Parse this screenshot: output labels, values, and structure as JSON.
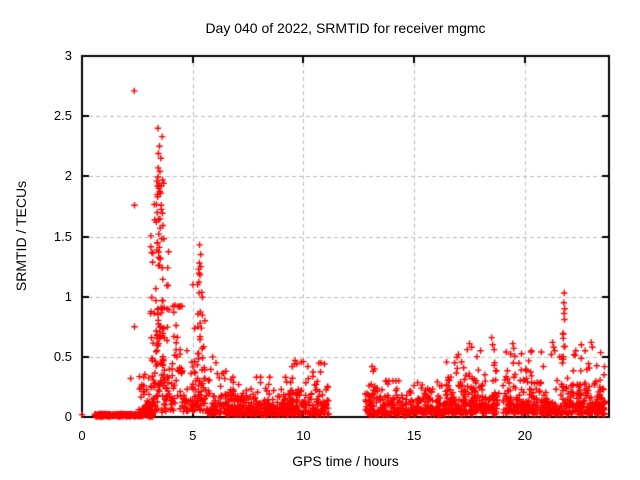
{
  "chart_data": {
    "type": "scatter",
    "title": "Day 040 of 2022, SRMTID for receiver mgmc",
    "xlabel": "GPS time / hours",
    "ylabel": "SRMTID / TECUs",
    "xlim": [
      0,
      23.8
    ],
    "ylim": [
      0,
      3
    ],
    "xticks": [
      0,
      5,
      10,
      15,
      20
    ],
    "yticks": [
      0,
      0.5,
      1,
      1.5,
      2,
      2.5,
      3
    ],
    "grid": "dashed",
    "legend": "none",
    "marker": "plus",
    "marker_color": "#ff0000",
    "grid_color": "#bdbdbd",
    "border_color": "#000000",
    "background": "#ffffff",
    "seed": 42,
    "notes": "dense noisy scatter; flat near-zero bar 0.6-2.7h; big spike cluster 3.1-4.9h (max 2.71 at 2.36h, column to 2.40 at 3.4-3.6h); secondary spike 5.3h to 1.43; low band 5.6-11.1h; data gap 11.1-12.8h; low band 12.8-16.4h; taller clusters 16.4-21h up to ~0.66; narrow spike 21.8h to 1.03; end cluster to 23.6h up to ~0.62",
    "points": [
      [
        0.0,
        0.02
      ],
      [
        2.36,
        2.71
      ],
      [
        2.37,
        1.76
      ],
      [
        2.37,
        0.75
      ],
      [
        2.2,
        0.32
      ],
      [
        3.43,
        2.4
      ],
      [
        3.62,
        2.33
      ],
      [
        3.5,
        2.25
      ],
      [
        3.45,
        2.19
      ],
      [
        3.56,
        2.15
      ],
      [
        3.44,
        2.07
      ],
      [
        3.52,
        2.04
      ],
      [
        3.38,
        1.96
      ],
      [
        3.47,
        1.9
      ],
      [
        3.55,
        1.86
      ],
      [
        3.42,
        1.83
      ],
      [
        3.58,
        1.76
      ],
      [
        3.4,
        1.7
      ],
      [
        3.36,
        1.62
      ],
      [
        3.53,
        1.57
      ],
      [
        3.47,
        1.52
      ],
      [
        3.6,
        1.48
      ],
      [
        4.2,
        0.93
      ],
      [
        4.15,
        0.87
      ],
      [
        4.25,
        0.76
      ],
      [
        5.31,
        1.43
      ],
      [
        5.36,
        1.35
      ],
      [
        5.3,
        1.28
      ],
      [
        5.33,
        1.18
      ],
      [
        5.28,
        1.12
      ],
      [
        5.9,
        0.5
      ],
      [
        6.05,
        0.45
      ],
      [
        9.62,
        0.47
      ],
      [
        9.7,
        0.44
      ],
      [
        10.2,
        0.42
      ],
      [
        10.95,
        0.44
      ],
      [
        13.1,
        0.42
      ],
      [
        13.15,
        0.38
      ],
      [
        17.0,
        0.52
      ],
      [
        17.4,
        0.56
      ],
      [
        17.5,
        0.61
      ],
      [
        17.6,
        0.58
      ],
      [
        18.0,
        0.55
      ],
      [
        18.5,
        0.66
      ],
      [
        18.55,
        0.6
      ],
      [
        19.45,
        0.61
      ],
      [
        19.5,
        0.57
      ],
      [
        20.3,
        0.55
      ],
      [
        21.25,
        0.62
      ],
      [
        21.3,
        0.58
      ],
      [
        21.35,
        0.55
      ],
      [
        21.2,
        0.52
      ],
      [
        21.78,
        1.03
      ],
      [
        21.76,
        0.95
      ],
      [
        21.8,
        0.9
      ],
      [
        21.77,
        0.86
      ],
      [
        21.79,
        0.81
      ],
      [
        21.74,
        0.69
      ],
      [
        22.3,
        0.55
      ],
      [
        22.55,
        0.6
      ],
      [
        23.0,
        0.62
      ],
      [
        23.05,
        0.58
      ]
    ],
    "clusters": [
      {
        "x0": 0.58,
        "x1": 2.72,
        "n": 260,
        "dist": "uniform",
        "ymin": 0.005,
        "ymax": 0.025
      },
      {
        "x0": 2.72,
        "x1": 3.2,
        "n": 90,
        "dist": "exp",
        "ymin": 0.005,
        "scale": 0.05,
        "ymax": 0.42
      },
      {
        "x0": 2.45,
        "x1": 3.1,
        "n": 16,
        "dist": "uniform",
        "ymin": 0.05,
        "ymax": 0.36
      },
      {
        "x0": 3.1,
        "x1": 3.95,
        "n": 115,
        "dist": "exp",
        "ymin": 0.03,
        "scale": 0.45,
        "ymax": 1.92
      },
      {
        "x0": 3.32,
        "x1": 3.7,
        "n": 40,
        "dist": "uniform",
        "ymin": 0.55,
        "ymax": 2.0
      },
      {
        "x0": 3.95,
        "x1": 4.55,
        "n": 45,
        "dist": "exp",
        "ymin": 0.05,
        "scale": 0.26,
        "ymax": 0.92
      },
      {
        "x0": 4.55,
        "x1": 4.95,
        "n": 20,
        "dist": "exp",
        "ymin": 0.04,
        "scale": 0.14,
        "ymax": 0.6
      },
      {
        "x0": 4.95,
        "x1": 5.6,
        "n": 70,
        "dist": "exp",
        "ymin": 0.04,
        "scale": 0.28,
        "ymax": 1.1
      },
      {
        "x0": 5.25,
        "x1": 5.45,
        "n": 12,
        "dist": "uniform",
        "ymin": 0.6,
        "ymax": 1.25
      },
      {
        "x0": 5.6,
        "x1": 6.5,
        "n": 70,
        "dist": "exp",
        "ymin": 0.02,
        "scale": 0.11,
        "ymax": 0.44
      },
      {
        "x0": 6.5,
        "x1": 9.35,
        "n": 270,
        "dist": "exp",
        "ymin": 0.015,
        "scale": 0.075,
        "ymax": 0.33
      },
      {
        "x0": 9.35,
        "x1": 11.15,
        "n": 155,
        "dist": "exp",
        "ymin": 0.015,
        "scale": 0.105,
        "ymax": 0.46
      },
      {
        "x0": 12.78,
        "x1": 13.55,
        "n": 70,
        "dist": "exp",
        "ymin": 0.015,
        "scale": 0.1,
        "ymax": 0.4
      },
      {
        "x0": 13.55,
        "x1": 14.35,
        "n": 80,
        "dist": "exp",
        "ymin": 0.015,
        "scale": 0.08,
        "ymax": 0.3
      },
      {
        "x0": 14.35,
        "x1": 14.75,
        "n": 25,
        "dist": "exp",
        "ymin": 0.01,
        "scale": 0.05,
        "ymax": 0.18
      },
      {
        "x0": 14.75,
        "x1": 16.4,
        "n": 150,
        "dist": "exp",
        "ymin": 0.015,
        "scale": 0.08,
        "ymax": 0.3
      },
      {
        "x0": 16.4,
        "x1": 18.85,
        "n": 230,
        "dist": "exp",
        "ymin": 0.02,
        "scale": 0.13,
        "ymax": 0.56
      },
      {
        "x0": 19.0,
        "x1": 20.75,
        "n": 160,
        "dist": "exp",
        "ymin": 0.02,
        "scale": 0.12,
        "ymax": 0.54
      },
      {
        "x0": 20.75,
        "x1": 21.55,
        "n": 60,
        "dist": "exp",
        "ymin": 0.015,
        "scale": 0.09,
        "ymax": 0.42
      },
      {
        "x0": 21.55,
        "x1": 22.1,
        "n": 45,
        "dist": "exp",
        "ymin": 0.02,
        "scale": 0.12,
        "ymax": 0.5
      },
      {
        "x0": 21.7,
        "x1": 21.85,
        "n": 6,
        "dist": "uniform",
        "ymin": 0.45,
        "ymax": 0.72
      },
      {
        "x0": 22.1,
        "x1": 23.62,
        "n": 170,
        "dist": "exp",
        "ymin": 0.02,
        "scale": 0.13,
        "ymax": 0.55
      }
    ]
  }
}
